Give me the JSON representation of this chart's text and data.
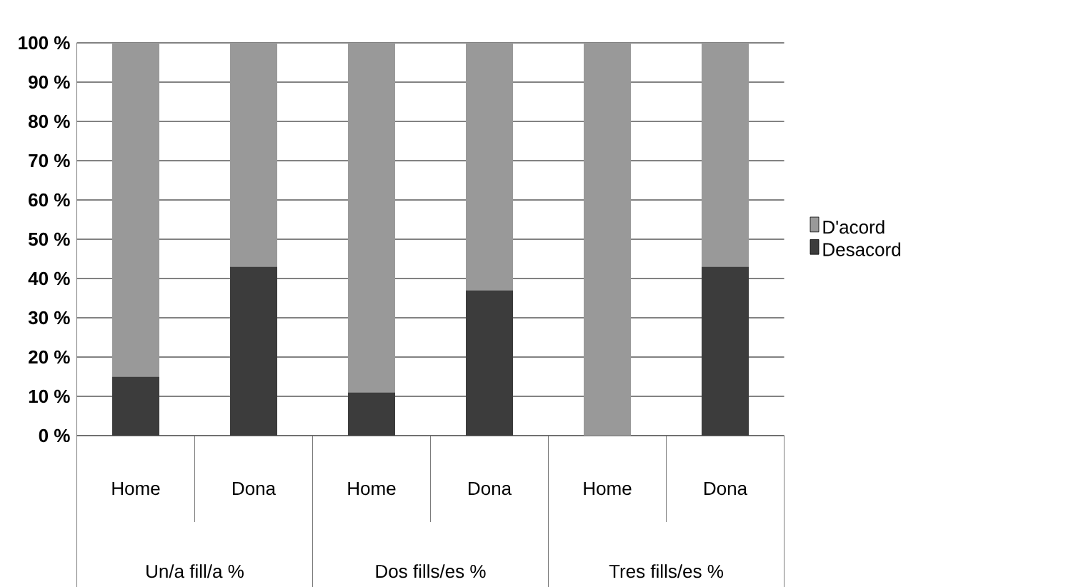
{
  "chart_data": {
    "type": "bar",
    "stacked": true,
    "categories": [
      "Home",
      "Dona",
      "Home",
      "Dona",
      "Home",
      "Dona"
    ],
    "series": [
      {
        "name": "Desacord",
        "color": "#3c3c3c",
        "values": [
          15,
          43,
          11,
          37,
          0,
          43
        ]
      },
      {
        "name": "D'acord",
        "color": "#999999",
        "values": [
          85,
          57,
          89,
          63,
          100,
          57
        ]
      }
    ],
    "ylim": [
      0,
      100
    ],
    "yticks": [
      {
        "value": 0,
        "label": "0 %"
      },
      {
        "value": 10,
        "label": "10 %"
      },
      {
        "value": 20,
        "label": "20 %"
      },
      {
        "value": 30,
        "label": "30 %"
      },
      {
        "value": 40,
        "label": "40 %"
      },
      {
        "value": 50,
        "label": "50 %"
      },
      {
        "value": 60,
        "label": "60 %"
      },
      {
        "value": 70,
        "label": "70 %"
      },
      {
        "value": 80,
        "label": "80 %"
      },
      {
        "value": 90,
        "label": "90 %"
      },
      {
        "value": 100,
        "label": "100 %"
      }
    ],
    "grid": "y",
    "legend": "right",
    "annotations": [
      "Un/a fill/a %",
      "Dos fills/es %",
      "Tres fills/es %"
    ]
  }
}
